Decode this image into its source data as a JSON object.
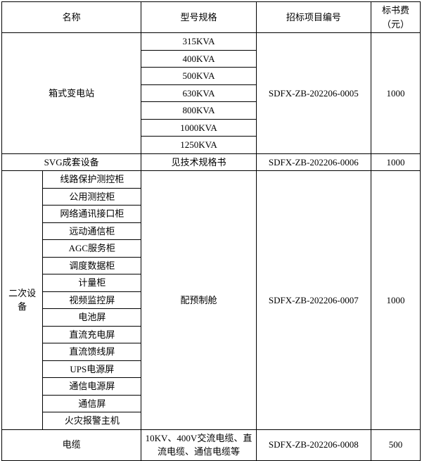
{
  "table": {
    "background_color": "#ffffff",
    "border_color": "#000000",
    "font_size": 13,
    "headers": {
      "name": "名称",
      "spec": "型号规格",
      "project_no": "招标项目编号",
      "fee": "标书费（元）"
    },
    "rows": [
      {
        "name": "箱式变电站",
        "name_colspan": 2,
        "specs": [
          "315KVA",
          "400KVA",
          "500KVA",
          "630KVA",
          "800KVA",
          "1000KVA",
          "1250KVA"
        ],
        "project_no": "SDFX-ZB-202206-0005",
        "fee": "1000"
      },
      {
        "name": "SVG成套设备",
        "name_colspan": 2,
        "specs": [
          "见技术规格书"
        ],
        "project_no": "SDFX-ZB-202206-0006",
        "fee": "1000"
      },
      {
        "name": "二次设备",
        "sub_items": [
          "线路保护测控柜",
          "公用测控柜",
          "网络通讯接口柜",
          "远动通信柜",
          "AGC服务柜",
          "调度数据柜",
          "计量柜",
          "视频监控屏",
          "电池屏",
          "直流充电屏",
          "直流馈线屏",
          "UPS电源屏",
          "通信电源屏",
          "通信屏",
          "火灾报警主机"
        ],
        "spec": "配预制舱",
        "project_no": "SDFX-ZB-202206-0007",
        "fee": "1000"
      },
      {
        "name": "电缆",
        "name_colspan": 2,
        "specs": [
          "10KV、400V交流电缆、直流电缆、通信电缆等"
        ],
        "project_no": "SDFX-ZB-202206-0008",
        "fee": "500"
      }
    ]
  }
}
